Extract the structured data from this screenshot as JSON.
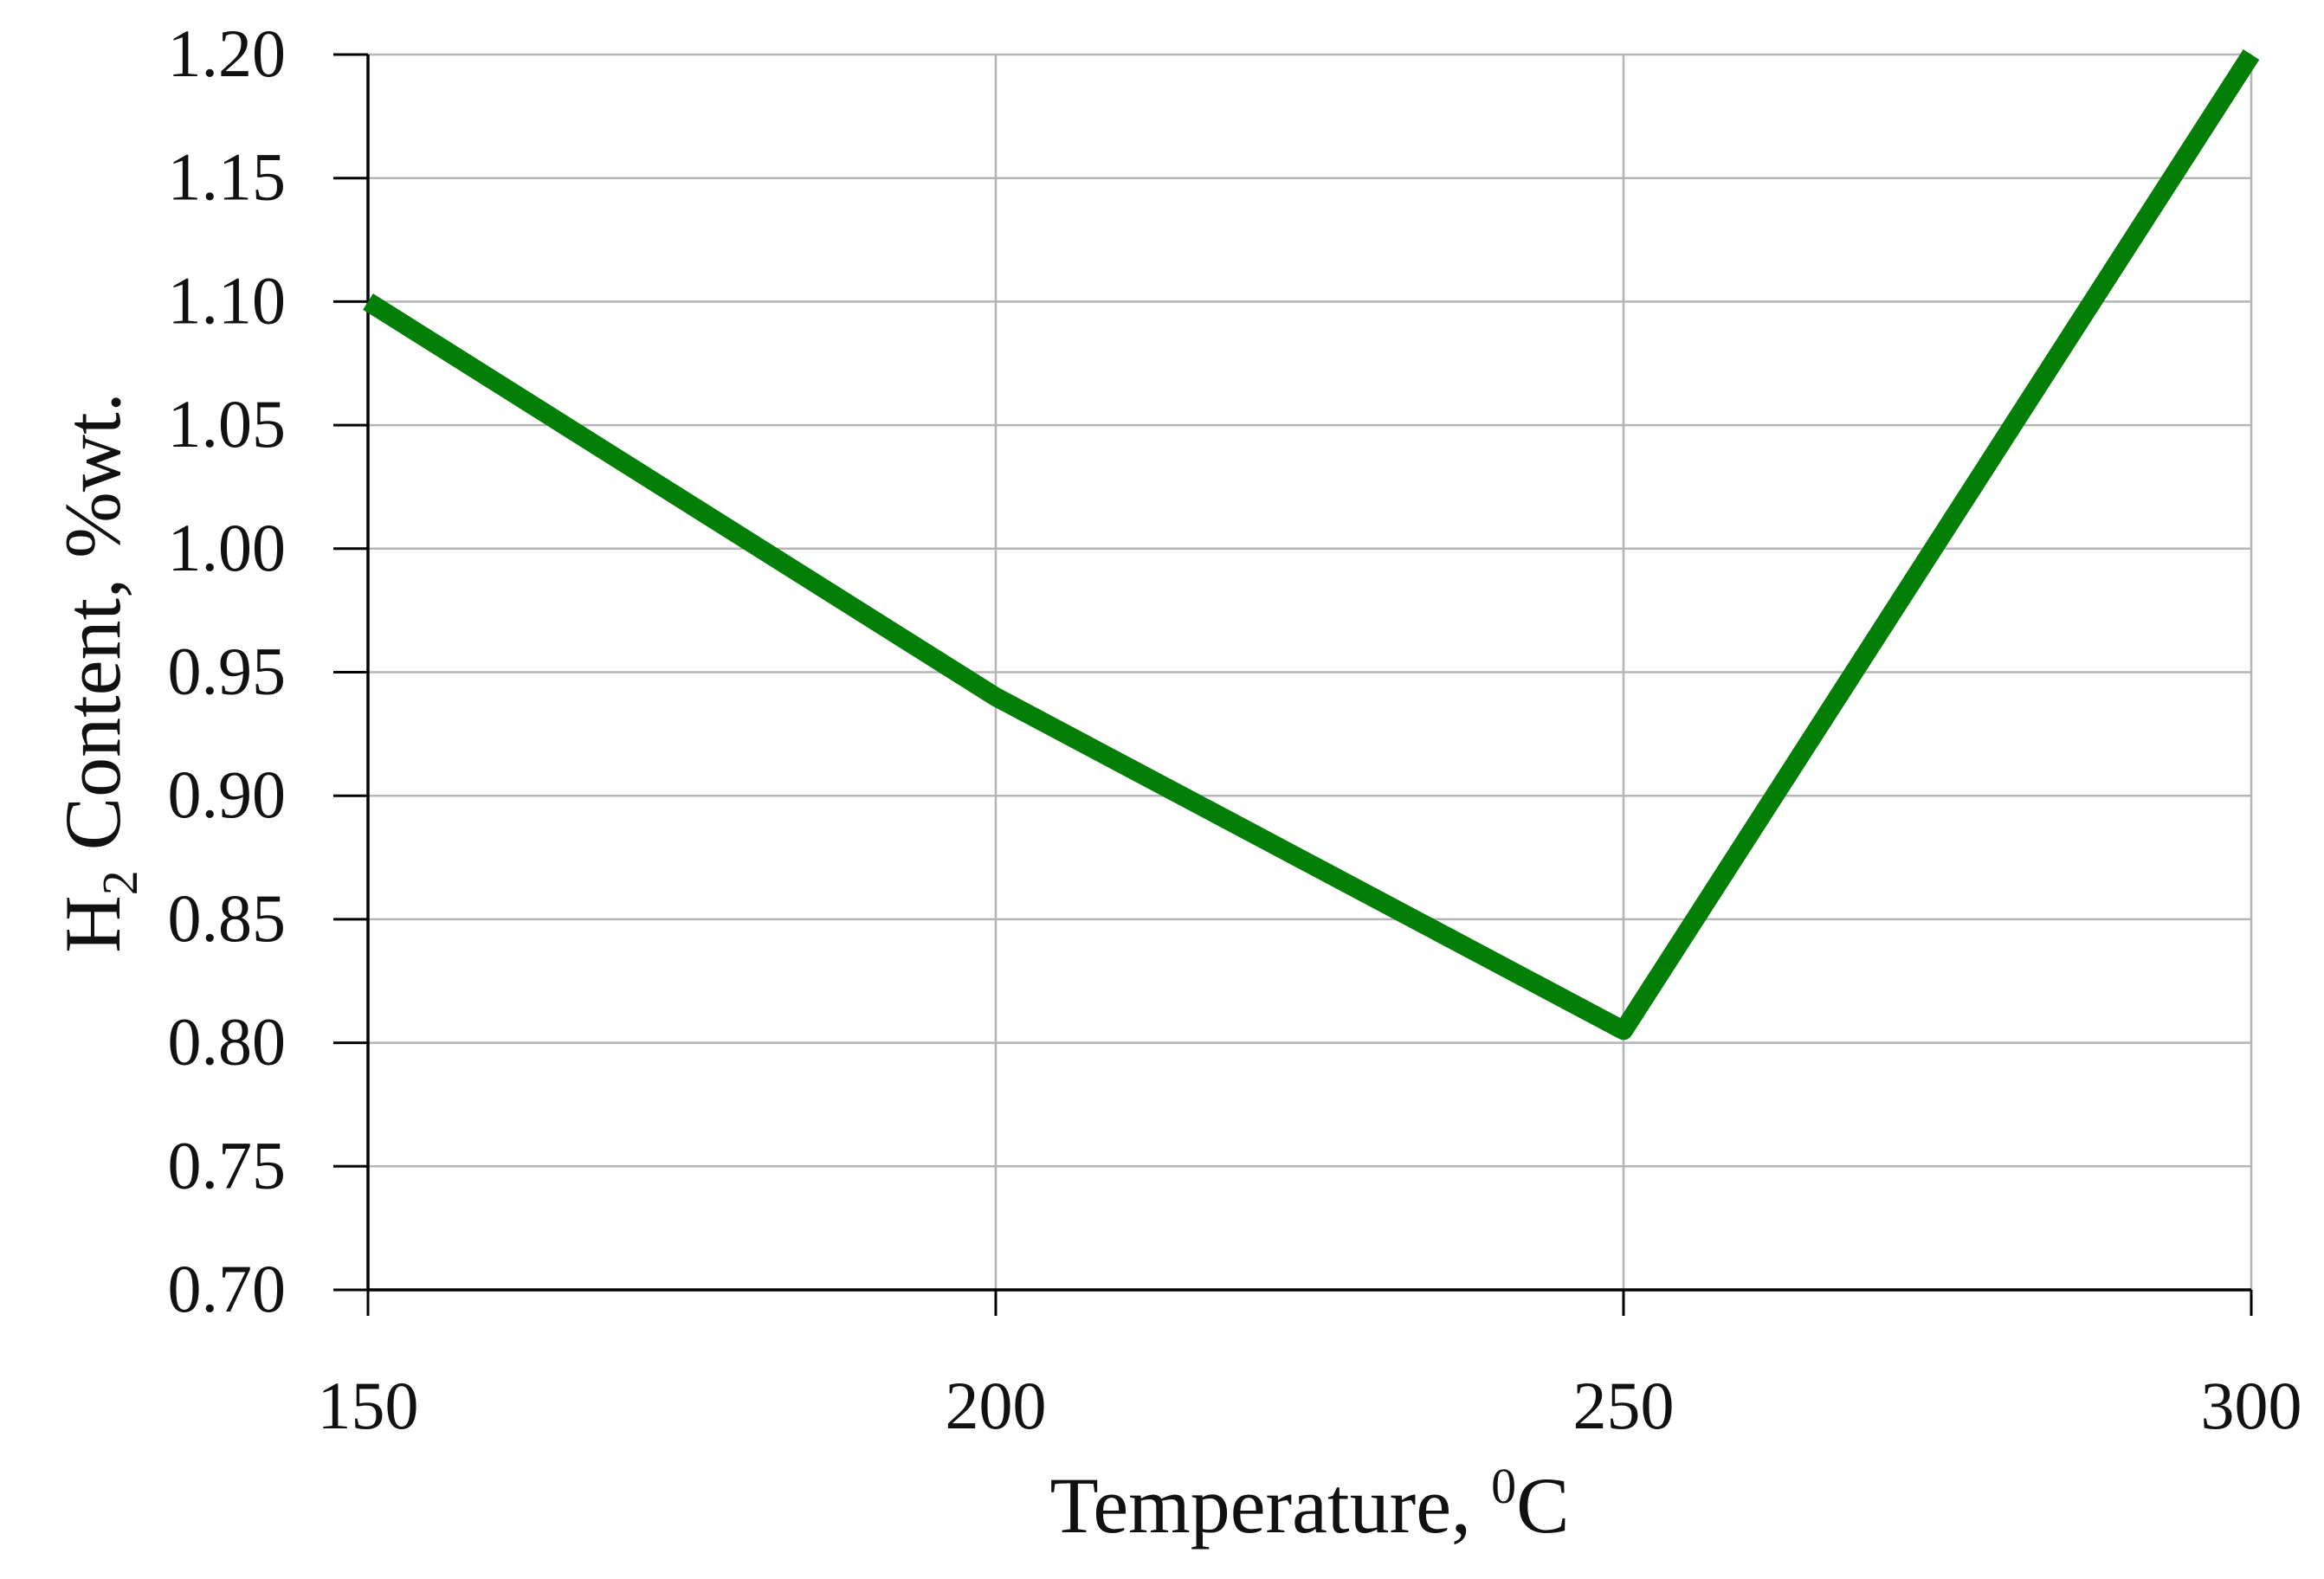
{
  "chart_data": {
    "type": "line",
    "title": "",
    "xlabel": {
      "main": "Temperature, ",
      "sup": "0",
      "unit": "C"
    },
    "ylabel": {
      "main": "H",
      "sub": "2",
      "rest": " Content, %wt."
    },
    "x": [
      150,
      200,
      250,
      300
    ],
    "series": [
      {
        "values": [
          1.1,
          0.94,
          0.805,
          1.2
        ],
        "color": "#037f07"
      }
    ],
    "xlim": [
      150,
      300
    ],
    "ylim": [
      0.7,
      1.2
    ],
    "xticks": [
      "150",
      "200",
      "250",
      "300"
    ],
    "yticks": [
      "0.70",
      "0.75",
      "0.80",
      "0.85",
      "0.90",
      "0.95",
      "1.00",
      "1.05",
      "1.10",
      "1.15",
      "1.20"
    ],
    "grid": true,
    "gridColor": "#b5b5b5",
    "axisColor": "#000000",
    "legend": "none"
  }
}
